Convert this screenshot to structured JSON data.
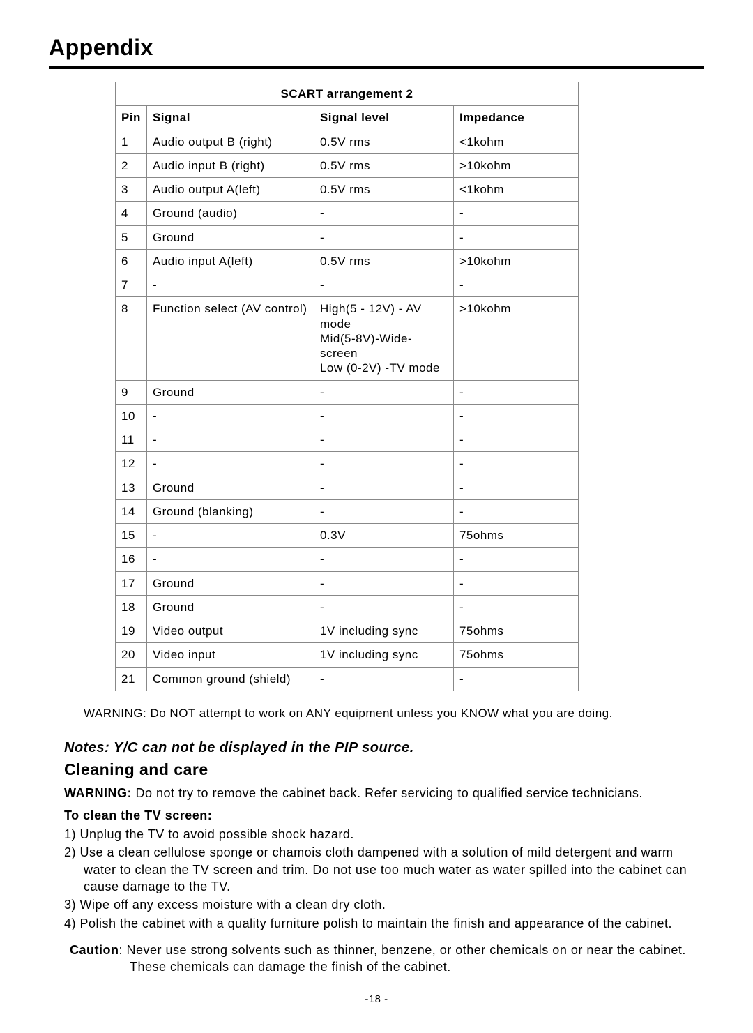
{
  "heading": "Appendix",
  "table": {
    "title": "SCART arrangement 2",
    "headers": {
      "pin": "Pin",
      "signal": "Signal",
      "level": "Signal level",
      "impedance": "Impedance"
    },
    "rows": [
      {
        "pin": "1",
        "signal": "Audio output B (right)",
        "level": "0.5V rms",
        "impedance": "<1kohm"
      },
      {
        "pin": "2",
        "signal": "Audio input B (right)",
        "level": "0.5V rms",
        "impedance": ">10kohm"
      },
      {
        "pin": "3",
        "signal": "Audio output A(left)",
        "level": "0.5V rms",
        "impedance": "<1kohm"
      },
      {
        "pin": "4",
        "signal": "Ground (audio)",
        "level": "-",
        "impedance": "-"
      },
      {
        "pin": "5",
        "signal": "Ground",
        "level": "-",
        "impedance": "-"
      },
      {
        "pin": "6",
        "signal": "Audio input A(left)",
        "level": "0.5V rms",
        "impedance": ">10kohm"
      },
      {
        "pin": "7",
        "signal": "-",
        "level": "-",
        "impedance": "-"
      },
      {
        "pin": "8",
        "signal": "Function select (AV control)",
        "level": "High(5 - 12V) - AV mode\nMid(5-8V)-Wide-screen\nLow (0-2V) -TV mode",
        "impedance": ">10kohm"
      },
      {
        "pin": "9",
        "signal": "Ground",
        "level": "-",
        "impedance": "-"
      },
      {
        "pin": "10",
        "signal": "-",
        "level": "-",
        "impedance": "-"
      },
      {
        "pin": "11",
        "signal": "-",
        "level": "-",
        "impedance": "-"
      },
      {
        "pin": "12",
        "signal": "-",
        "level": "-",
        "impedance": "-"
      },
      {
        "pin": "13",
        "signal": "Ground",
        "level": "-",
        "impedance": "-"
      },
      {
        "pin": "14",
        "signal": "Ground (blanking)",
        "level": "-",
        "impedance": "-"
      },
      {
        "pin": "15",
        "signal": "-",
        "level": " 0.3V",
        "impedance": "75ohms"
      },
      {
        "pin": "16",
        "signal": "-",
        "level": "-",
        "impedance": "-"
      },
      {
        "pin": "17",
        "signal": "Ground",
        "level": "-",
        "impedance": "-"
      },
      {
        "pin": "18",
        "signal": "Ground",
        "level": "-",
        "impedance": "-"
      },
      {
        "pin": "19",
        "signal": "Video output",
        "level": "1V including sync",
        "impedance": "75ohms"
      },
      {
        "pin": "20",
        "signal": "Video input",
        "level": "1V including sync",
        "impedance": "75ohms"
      },
      {
        "pin": "21",
        "signal": "Common ground (shield)",
        "level": "-",
        "impedance": "-"
      }
    ]
  },
  "warning_line": "WARNING:  Do NOT attempt to work on ANY equipment unless you KNOW what you are doing.",
  "notes": "Notes: Y/C can not be displayed  in the PIP source.",
  "cleaning": {
    "title": "Cleaning and care",
    "warning_label": "WARNING:",
    "warning_text": " Do not try to remove the cabinet back. Refer servicing to qualified  service technicians.",
    "subhead": "To clean the TV screen:",
    "items": [
      "1) Unplug the TV to avoid possible shock hazard.",
      "2) Use a clean cellulose sponge or chamois cloth dampened with a solution of mild detergent and warm water to clean the TV screen and trim. Do not use too much water as water spilled into the cabinet can cause damage to the TV.",
      "3) Wipe off any excess moisture with a clean dry cloth.",
      "4) Polish the cabinet with a quality furniture polish to maintain the finish and appearance of the cabinet."
    ],
    "caution_label": "Caution",
    "caution_text": ": Never use strong solvents such as thinner, benzene, or other chemicals on or near the cabinet. These chemicals can damage the finish of the cabinet."
  },
  "page_number": "-18 -"
}
